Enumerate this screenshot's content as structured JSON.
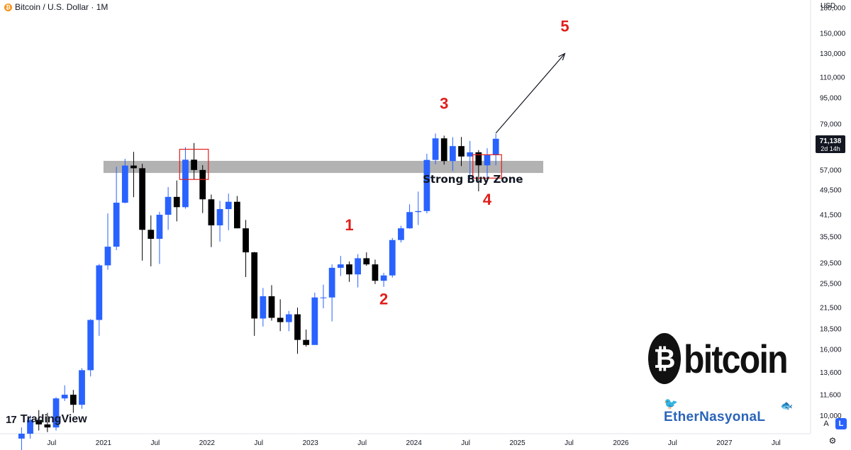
{
  "header": {
    "title": "Bitcoin / U.S. Dollar · 1M",
    "coin_symbol": "₿",
    "currency": "USD"
  },
  "colors": {
    "up": "#2962ff",
    "down": "#000000",
    "zone": "#b2b2b2",
    "annotation": "#e0201b",
    "price_label_bg": "#131722"
  },
  "price_label": {
    "price": "71,138",
    "countdown": "2d 14h"
  },
  "annotations": {
    "zone_label": "Strong Buy Zone",
    "waves": [
      "1",
      "2",
      "3",
      "4",
      "5"
    ]
  },
  "logos": {
    "tradingview": "TradingView",
    "tradingview_mark": "17",
    "bitcoin_symbol": "₿",
    "bitcoin_word": "bitcoin",
    "ethernasyonal": "EtherNasyonaL",
    "bird_icon": "twitter-bird-icon",
    "fish_icon": "fish-icon"
  },
  "controls": {
    "auto_scale": "A",
    "log_scale": "L",
    "settings_icon": "gear-icon"
  },
  "chart_data": {
    "type": "candlestick",
    "interval": "1M",
    "y_scale": "log",
    "ylim": [
      8800,
      190000
    ],
    "y_ticks": [
      10000,
      11600,
      13600,
      16000,
      18500,
      21500,
      25500,
      29500,
      35500,
      41500,
      49500,
      57000,
      79000,
      95000,
      110000,
      130000,
      150000,
      180000
    ],
    "y_tick_labels": [
      "10,000",
      "11,600",
      "13,600",
      "16,000",
      "18,500",
      "21,500",
      "25,500",
      "29,500",
      "35,500",
      "41,500",
      "49,500",
      "57,000",
      "79,000",
      "95,000",
      "110,000",
      "130,000",
      "150,000",
      "180,000"
    ],
    "x_tick_labels": [
      "Jul",
      "2021",
      "Jul",
      "2022",
      "Jul",
      "2023",
      "Jul",
      "2024",
      "Jul",
      "2025",
      "Jul",
      "2026",
      "Jul",
      "2027",
      "Jul"
    ],
    "x_tick_dates": [
      "2020-07",
      "2021-01",
      "2021-07",
      "2022-01",
      "2022-07",
      "2023-01",
      "2023-07",
      "2024-01",
      "2024-07",
      "2025-01",
      "2025-07",
      "2026-01",
      "2026-07",
      "2027-01",
      "2027-07"
    ],
    "x_range": [
      "2020-01",
      "2027-10"
    ],
    "candles": [
      {
        "t": "2020-03",
        "o": 8500,
        "h": 9200,
        "l": 7800,
        "c": 8800
      },
      {
        "t": "2020-04",
        "o": 8800,
        "h": 10000,
        "l": 8500,
        "c": 9700
      },
      {
        "t": "2020-05",
        "o": 9700,
        "h": 10400,
        "l": 9000,
        "c": 9400
      },
      {
        "t": "2020-06",
        "o": 9400,
        "h": 10200,
        "l": 8900,
        "c": 9200
      },
      {
        "t": "2020-07",
        "o": 9200,
        "h": 11400,
        "l": 9000,
        "c": 11300
      },
      {
        "t": "2020-08",
        "o": 11300,
        "h": 12400,
        "l": 11100,
        "c": 11600
      },
      {
        "t": "2020-09",
        "o": 11600,
        "h": 12000,
        "l": 10200,
        "c": 10800
      },
      {
        "t": "2020-10",
        "o": 10800,
        "h": 14000,
        "l": 10500,
        "c": 13800
      },
      {
        "t": "2020-11",
        "o": 13800,
        "h": 19800,
        "l": 13200,
        "c": 19700
      },
      {
        "t": "2020-12",
        "o": 19700,
        "h": 29300,
        "l": 17600,
        "c": 29000
      },
      {
        "t": "2021-01",
        "o": 29000,
        "h": 41900,
        "l": 28100,
        "c": 33100
      },
      {
        "t": "2021-02",
        "o": 33100,
        "h": 58300,
        "l": 32300,
        "c": 45200
      },
      {
        "t": "2021-03",
        "o": 45200,
        "h": 61700,
        "l": 45000,
        "c": 58800
      },
      {
        "t": "2021-04",
        "o": 58800,
        "h": 64800,
        "l": 47000,
        "c": 57700
      },
      {
        "t": "2021-05",
        "o": 57700,
        "h": 59500,
        "l": 30000,
        "c": 37300
      },
      {
        "t": "2021-06",
        "o": 37300,
        "h": 41300,
        "l": 28800,
        "c": 35000
      },
      {
        "t": "2021-07",
        "o": 35000,
        "h": 42400,
        "l": 29300,
        "c": 41500
      },
      {
        "t": "2021-08",
        "o": 41500,
        "h": 50500,
        "l": 37300,
        "c": 47100
      },
      {
        "t": "2021-09",
        "o": 47100,
        "h": 52900,
        "l": 39600,
        "c": 43800
      },
      {
        "t": "2021-10",
        "o": 43800,
        "h": 67000,
        "l": 43300,
        "c": 61300
      },
      {
        "t": "2021-11",
        "o": 61300,
        "h": 69000,
        "l": 53300,
        "c": 57000
      },
      {
        "t": "2021-12",
        "o": 57000,
        "h": 59000,
        "l": 42000,
        "c": 46300
      },
      {
        "t": "2022-01",
        "o": 46300,
        "h": 47900,
        "l": 33000,
        "c": 38500
      },
      {
        "t": "2022-02",
        "o": 38500,
        "h": 45800,
        "l": 34300,
        "c": 43200
      },
      {
        "t": "2022-03",
        "o": 43200,
        "h": 48200,
        "l": 37200,
        "c": 45500
      },
      {
        "t": "2022-04",
        "o": 45500,
        "h": 47400,
        "l": 37700,
        "c": 37700
      },
      {
        "t": "2022-05",
        "o": 37700,
        "h": 40000,
        "l": 26700,
        "c": 31800
      },
      {
        "t": "2022-06",
        "o": 31800,
        "h": 31900,
        "l": 17600,
        "c": 19900
      },
      {
        "t": "2022-07",
        "o": 19900,
        "h": 24700,
        "l": 18800,
        "c": 23300
      },
      {
        "t": "2022-08",
        "o": 23300,
        "h": 25200,
        "l": 19600,
        "c": 20000
      },
      {
        "t": "2022-09",
        "o": 20000,
        "h": 22800,
        "l": 18200,
        "c": 19400
      },
      {
        "t": "2022-10",
        "o": 19400,
        "h": 21000,
        "l": 18200,
        "c": 20500
      },
      {
        "t": "2022-11",
        "o": 20500,
        "h": 21500,
        "l": 15500,
        "c": 17100
      },
      {
        "t": "2022-12",
        "o": 17100,
        "h": 18400,
        "l": 16300,
        "c": 16500
      },
      {
        "t": "2023-01",
        "o": 16500,
        "h": 23900,
        "l": 16500,
        "c": 23100
      },
      {
        "t": "2023-02",
        "o": 23100,
        "h": 25300,
        "l": 21400,
        "c": 23100
      },
      {
        "t": "2023-03",
        "o": 23100,
        "h": 29200,
        "l": 19500,
        "c": 28500
      },
      {
        "t": "2023-04",
        "o": 28500,
        "h": 31000,
        "l": 26900,
        "c": 29200
      },
      {
        "t": "2023-05",
        "o": 29200,
        "h": 29800,
        "l": 25800,
        "c": 27200
      },
      {
        "t": "2023-06",
        "o": 27200,
        "h": 31400,
        "l": 24800,
        "c": 30500
      },
      {
        "t": "2023-07",
        "o": 30500,
        "h": 31800,
        "l": 28900,
        "c": 29200
      },
      {
        "t": "2023-08",
        "o": 29200,
        "h": 30200,
        "l": 25400,
        "c": 26000
      },
      {
        "t": "2023-09",
        "o": 26000,
        "h": 27500,
        "l": 24900,
        "c": 27000
      },
      {
        "t": "2023-10",
        "o": 27000,
        "h": 35200,
        "l": 26600,
        "c": 34700
      },
      {
        "t": "2023-11",
        "o": 34700,
        "h": 38400,
        "l": 34100,
        "c": 37700
      },
      {
        "t": "2023-12",
        "o": 37700,
        "h": 44700,
        "l": 37600,
        "c": 42300
      },
      {
        "t": "2024-01",
        "o": 42300,
        "h": 48900,
        "l": 38600,
        "c": 42600
      },
      {
        "t": "2024-02",
        "o": 42600,
        "h": 63900,
        "l": 41900,
        "c": 61200
      },
      {
        "t": "2024-03",
        "o": 61200,
        "h": 73800,
        "l": 59300,
        "c": 71300
      },
      {
        "t": "2024-04",
        "o": 71300,
        "h": 72700,
        "l": 59200,
        "c": 60700
      },
      {
        "t": "2024-05",
        "o": 60700,
        "h": 71900,
        "l": 56600,
        "c": 67500
      },
      {
        "t": "2024-06",
        "o": 67500,
        "h": 72000,
        "l": 58600,
        "c": 62700
      },
      {
        "t": "2024-07",
        "o": 62700,
        "h": 70000,
        "l": 53500,
        "c": 64600
      },
      {
        "t": "2024-08",
        "o": 64600,
        "h": 65600,
        "l": 49000,
        "c": 58900
      },
      {
        "t": "2024-09",
        "o": 58900,
        "h": 66500,
        "l": 52600,
        "c": 63300
      },
      {
        "t": "2024-10",
        "o": 63300,
        "h": 73600,
        "l": 58900,
        "c": 71100
      }
    ],
    "support_zone": {
      "low": 55800,
      "high": 60800,
      "from": "2021-01",
      "to": "2025-04"
    },
    "highlight_boxes": [
      {
        "from": "2021-10",
        "to": "2021-12",
        "low": 53300,
        "high": 66000
      },
      {
        "from": "2024-08",
        "to": "2024-10",
        "low": 53800,
        "high": 63500
      }
    ],
    "arrow": {
      "from": {
        "t": "2024-10",
        "price": 74000
      },
      "to": {
        "t": "2025-06",
        "price": 130000
      }
    },
    "wave_positions": [
      {
        "label": "1",
        "t": "2023-05",
        "price": 37200
      },
      {
        "label": "2",
        "t": "2023-09",
        "price": 22000
      },
      {
        "label": "3",
        "t": "2024-04",
        "price": 88000
      },
      {
        "label": "4",
        "t": "2024-09",
        "price": 44500
      },
      {
        "label": "5",
        "t": "2025-06",
        "price": 152000
      }
    ],
    "zone_label_pos": {
      "t": "2024-08",
      "price": 52000
    }
  }
}
